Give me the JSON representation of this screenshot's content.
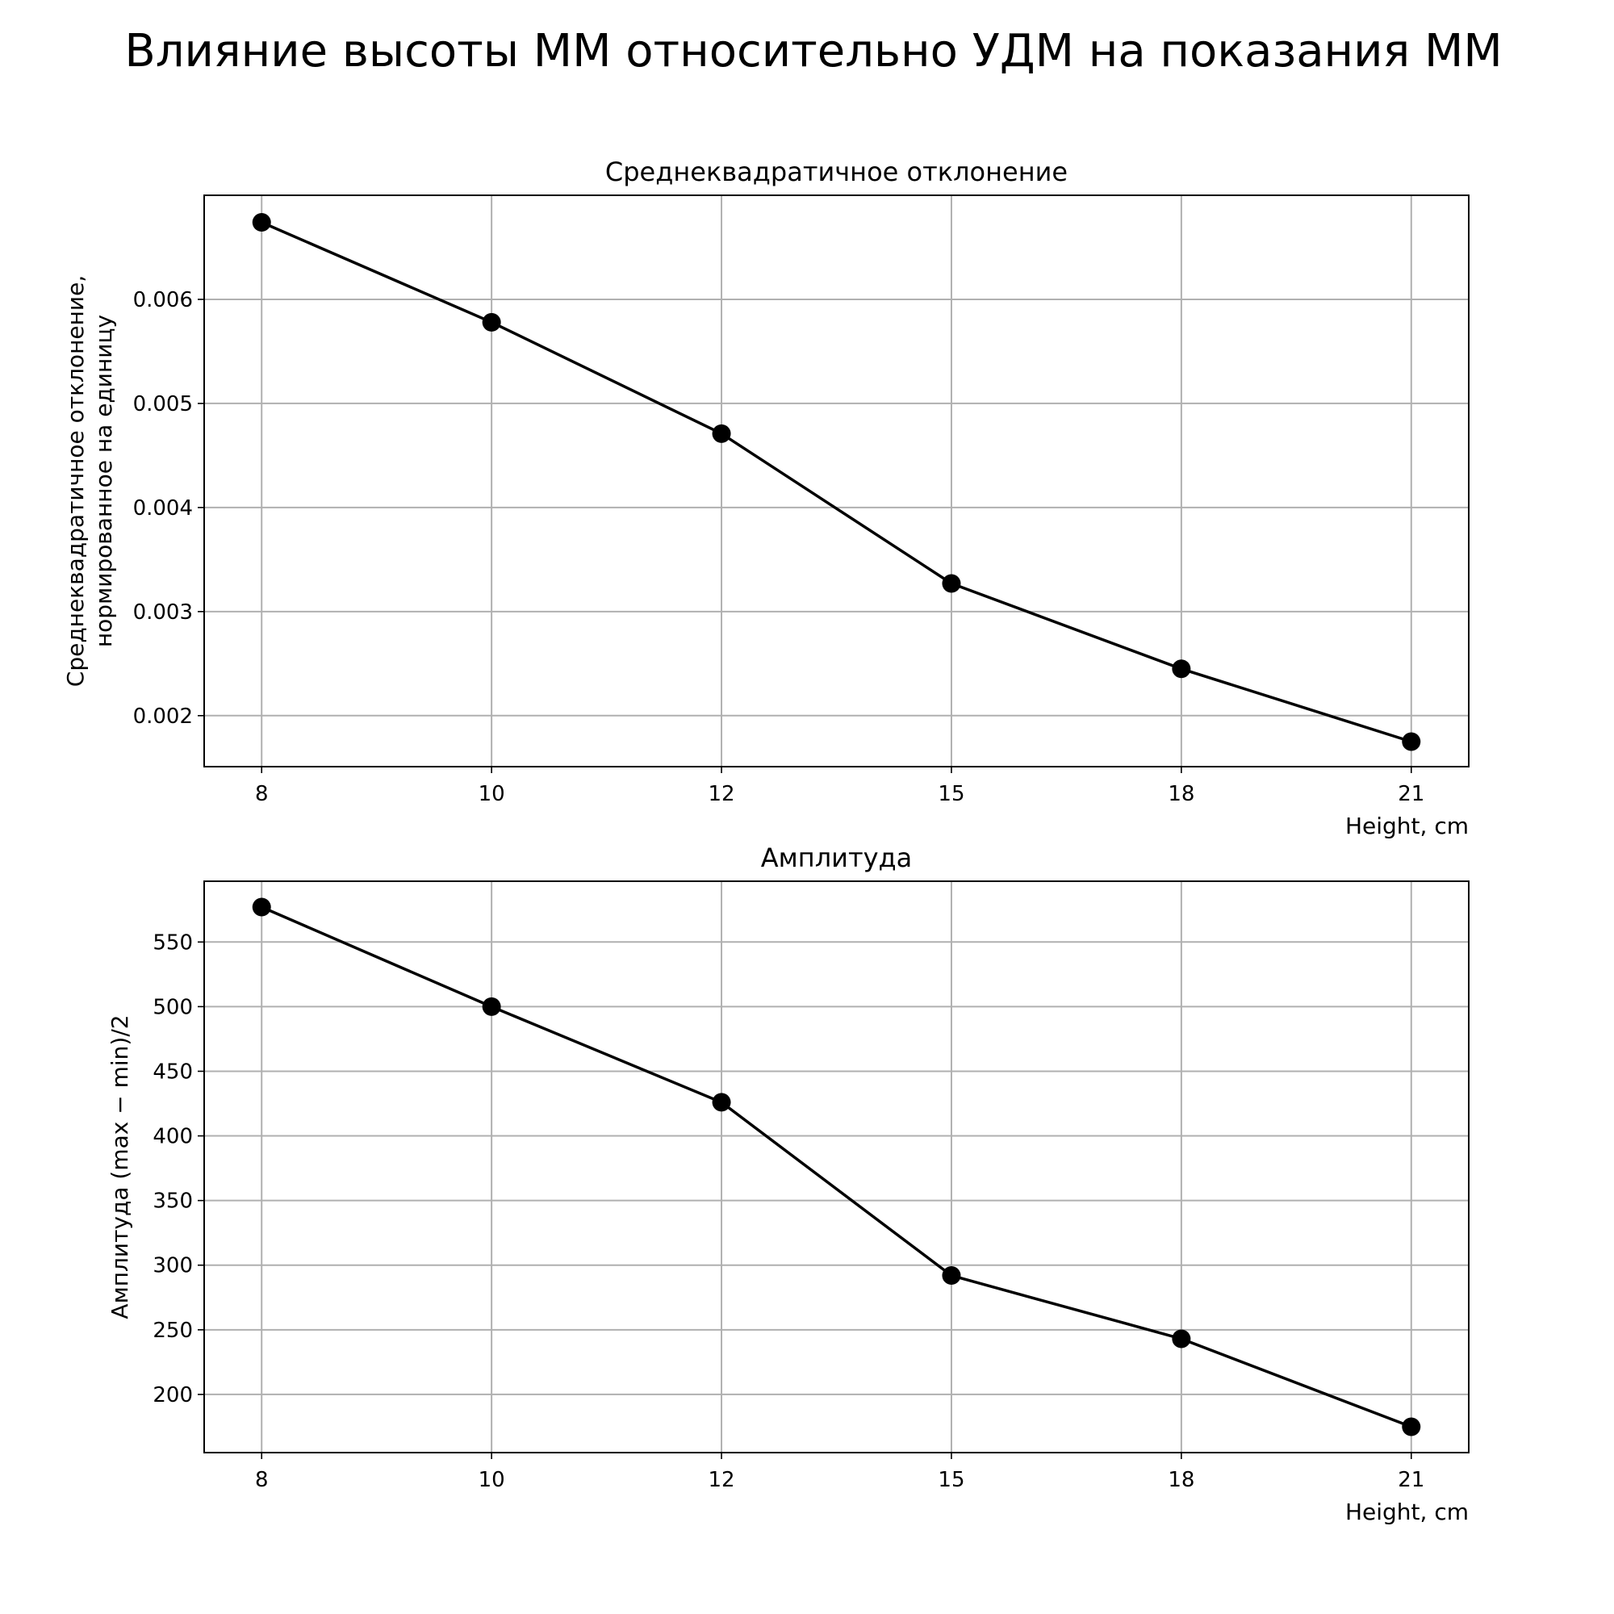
{
  "figure_title": "Влияние высоты ММ относительно УДМ на показания ММ",
  "chart_data": [
    {
      "type": "line",
      "title": "Среднеквадратичное отклонение",
      "xlabel": "Height, cm",
      "ylabel_lines": [
        "Среднеквадратичное отклонение,",
        "нормированное на единицу"
      ],
      "categories": [
        "8",
        "10",
        "12",
        "15",
        "18",
        "21"
      ],
      "values": [
        0.00674,
        0.00578,
        0.00471,
        0.00327,
        0.00245,
        0.00175
      ],
      "ylim": [
        0.00151,
        0.007
      ],
      "yticks": [
        0.002,
        0.003,
        0.004,
        0.005,
        0.006
      ],
      "ytick_labels": [
        "0.002",
        "0.003",
        "0.004",
        "0.005",
        "0.006"
      ],
      "grid": true,
      "marker": "circle",
      "color": "#000000"
    },
    {
      "type": "line",
      "title": "Амплитуда",
      "xlabel": "Height, cm",
      "ylabel_lines": [
        "Амплитуда (max − min)/2"
      ],
      "categories": [
        "8",
        "10",
        "12",
        "15",
        "18",
        "21"
      ],
      "values": [
        577,
        500,
        426,
        292,
        243,
        175
      ],
      "ylim": [
        155,
        597
      ],
      "yticks": [
        200,
        250,
        300,
        350,
        400,
        450,
        500,
        550
      ],
      "ytick_labels": [
        "200",
        "250",
        "300",
        "350",
        "400",
        "450",
        "500",
        "550"
      ],
      "grid": true,
      "marker": "circle",
      "color": "#000000"
    }
  ]
}
